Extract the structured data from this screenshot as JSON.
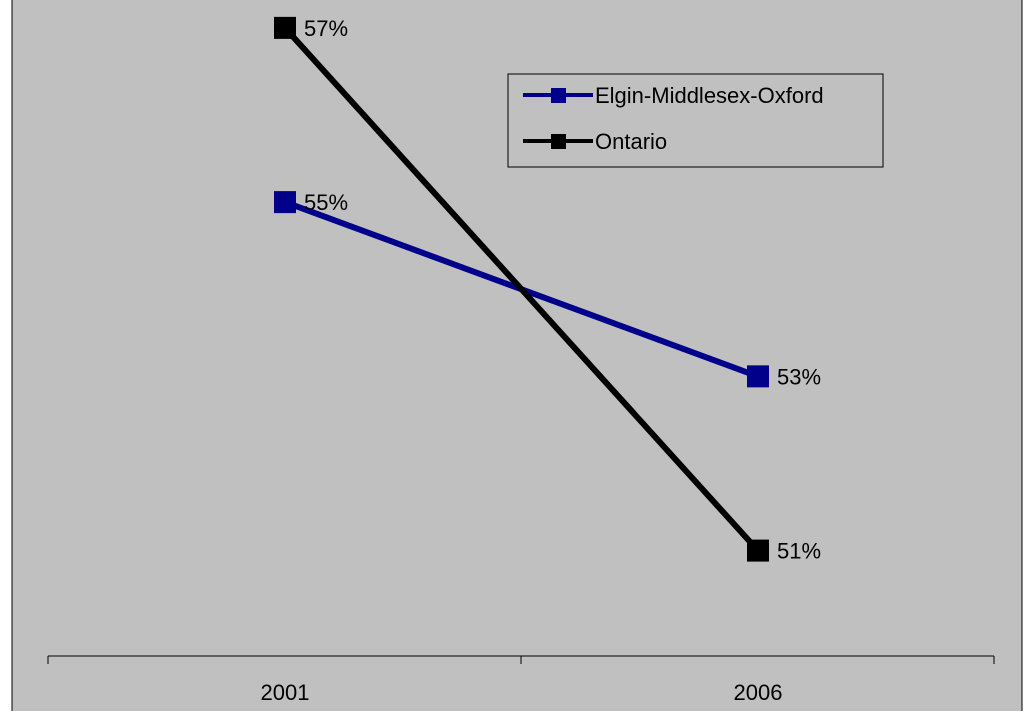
{
  "chart_data": {
    "type": "line",
    "categories": [
      "2001",
      "2006"
    ],
    "series": [
      {
        "name": "Elgin-Middlesex-Oxford",
        "values": [
          55,
          53
        ],
        "labels": [
          "55%",
          "53%"
        ],
        "color": "#00008B"
      },
      {
        "name": "Ontario",
        "values": [
          57,
          51
        ],
        "labels": [
          "57%",
          "51%"
        ],
        "color": "#000000"
      }
    ],
    "plot_background": "#C0C0C0",
    "ylim": [
      49.79,
      57.32
    ],
    "grid": false,
    "legend_position": "top-right"
  }
}
